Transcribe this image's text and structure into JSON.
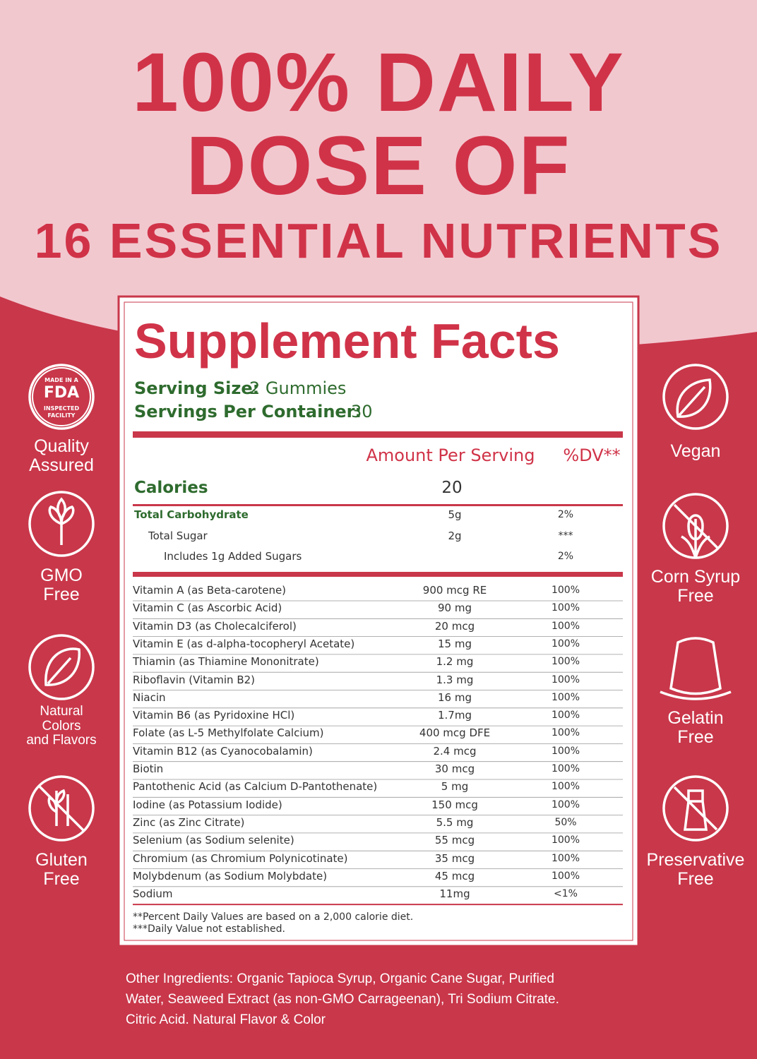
{
  "header": {
    "lines": [
      "100% DAILY",
      "DOSE OF",
      "16 ESSENTIAL NUTRIENTS"
    ]
  },
  "facts": {
    "title": "Supplement Facts",
    "serving_size_label": "Serving Size:",
    "serving_size": "2 Gummies",
    "servings_label": "Servings Per Container:",
    "servings": "30",
    "col_amount": "Amount Per Serving",
    "col_dv": "%DV**",
    "calories_label": "Calories",
    "calories": "20",
    "carbs": [
      {
        "name": "Total Carbohydrate",
        "amount": "5g",
        "dv": "2%"
      },
      {
        "name": "Total Sugar",
        "amount": "2g",
        "dv": "***"
      },
      {
        "name": "Includes 1g Added Sugars",
        "dv": "2%"
      }
    ],
    "rows": [
      [
        "Vitamin A (as Beta-carotene)",
        "900 mcg RE",
        "100%"
      ],
      [
        "Vitamin C (as Ascorbic Acid)",
        "90 mg",
        "100%"
      ],
      [
        "Vitamin D3 (as Cholecalciferol)",
        "20 mcg",
        "100%"
      ],
      [
        "Vitamin E (as d-alpha-tocopheryl Acetate)",
        "15 mg",
        "100%"
      ],
      [
        "Thiamin (as Thiamine Mononitrate)",
        "1.2 mg",
        "100%"
      ],
      [
        "Riboflavin (Vitamin B2)",
        "1.3 mg",
        "100%"
      ],
      [
        "Niacin",
        "16 mg",
        "100%"
      ],
      [
        "Vitamin B6 (as Pyridoxine HCl)",
        "1.7mg",
        "100%"
      ],
      [
        "Folate (as L-5 Methylfolate Calcium)",
        "400 mcg DFE",
        "100%"
      ],
      [
        "Vitamin B12 (as Cyanocobalamin)",
        "2.4 mcg",
        "100%"
      ],
      [
        "Biotin",
        "30 mcg",
        "100%"
      ],
      [
        "Pantothenic Acid (as Calcium D-Pantothenate)",
        "5 mg",
        "100%"
      ],
      [
        "Iodine (as Potassium Iodide)",
        "150 mcg",
        "100%"
      ],
      [
        "Zinc (as Zinc Citrate)",
        "5.5 mg",
        "50%"
      ],
      [
        "Selenium (as Sodium selenite)",
        "55 mcg",
        "100%"
      ],
      [
        "Chromium (as Chromium Polynicotinate)",
        "35 mcg",
        "100%"
      ],
      [
        "Molybdenum (as Sodium Molybdate)",
        "45 mcg",
        "100%"
      ],
      [
        "Sodium",
        "11mg",
        "<1%"
      ]
    ],
    "footnotes": [
      "**Percent Daily Values are based on a 2,000 calorie diet.",
      "***Daily Value not established."
    ]
  },
  "fda_badge": [
    "MADE IN A",
    "FDA",
    "INSPECTED",
    "FACILITY"
  ],
  "left_badges": [
    [
      "Quality",
      "Assured"
    ],
    [
      "GMO",
      "Free"
    ],
    [
      "Natural",
      "Colors",
      "and Flavors"
    ],
    [
      "Gluten",
      "Free"
    ]
  ],
  "right_badges": [
    [
      "Vegan"
    ],
    [
      "Corn Syrup",
      "Free"
    ],
    [
      "Gelatin",
      "Free"
    ],
    [
      "Preservative",
      "Free"
    ]
  ],
  "other_ingredients": [
    "Other Ingredients: Organic Tapioca Syrup, Organic Cane Sugar, Purified",
    "Water, Seaweed Extract (as non-GMO Carrageenan), Tri Sodium Citrate.",
    "Citric Acid. Natural Flavor & Color"
  ]
}
